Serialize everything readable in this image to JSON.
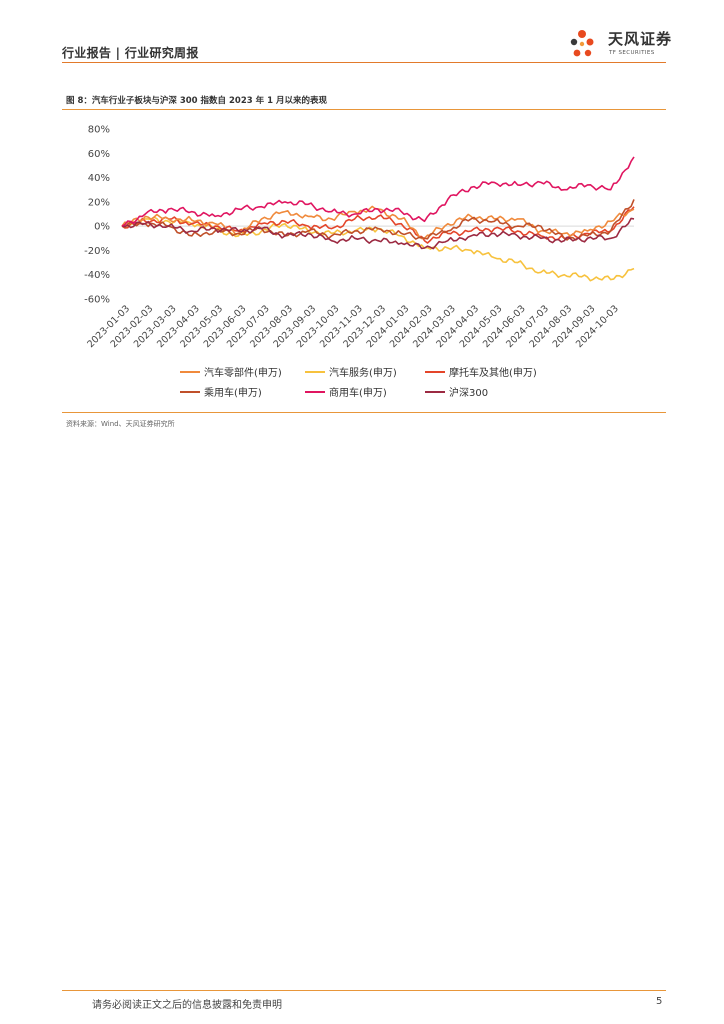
{
  "header": {
    "title": "行业报告 | 行业研究周报",
    "logo_text": "天风证券",
    "logo_sub": "TF SECURITIES"
  },
  "figure": {
    "title": "图 8：汽车行业子板块与沪深 300 指数自 2023 年 1 月以来的表现",
    "source": "资料来源：Wind、天风证券研究所"
  },
  "footer": {
    "disclaimer": "请务必阅读正文之后的信息披露和免责申明",
    "page_number": "5"
  },
  "colors": {
    "accent": "#e8963a",
    "parts": "#f08a3c",
    "service": "#f7c23e",
    "moto": "#e4452a",
    "passenger": "#c0502a",
    "commercial": "#e01560",
    "hs300": "#9c2a42"
  },
  "chart_data": {
    "type": "line",
    "x": [
      "2023-01-03",
      "2023-02-03",
      "2023-03-03",
      "2023-04-03",
      "2023-05-03",
      "2023-06-03",
      "2023-07-03",
      "2023-08-03",
      "2023-09-03",
      "2023-10-03",
      "2023-11-03",
      "2023-12-03",
      "2024-01-03",
      "2024-02-03",
      "2024-03-03",
      "2024-04-03",
      "2024-05-03",
      "2024-06-03",
      "2024-07-03",
      "2024-08-03",
      "2024-09-03",
      "2024-10-03",
      "2024-10-25"
    ],
    "ylim": [
      -60,
      80
    ],
    "yticks": [
      "80%",
      "60%",
      "40%",
      "20%",
      "0%",
      "-20%",
      "-40%",
      "-60%"
    ],
    "ytick_values": [
      80,
      60,
      40,
      20,
      0,
      -20,
      -40,
      -60
    ],
    "series": [
      {
        "name": "汽车零部件(申万)",
        "color_key": "parts",
        "values": [
          0,
          8,
          6,
          5,
          2,
          -6,
          6,
          12,
          8,
          6,
          12,
          14,
          6,
          -10,
          2,
          8,
          6,
          6,
          -4,
          -6,
          -4,
          4,
          14
        ]
      },
      {
        "name": "汽车服务(申万)",
        "color_key": "service",
        "values": [
          0,
          6,
          4,
          2,
          -2,
          -8,
          -4,
          2,
          -4,
          -6,
          -4,
          -2,
          -8,
          -18,
          -18,
          -20,
          -26,
          -30,
          -38,
          -40,
          -42,
          -44,
          -35
        ]
      },
      {
        "name": "摩托车及其他(申万)",
        "color_key": "moto",
        "values": [
          0,
          4,
          6,
          2,
          0,
          -4,
          2,
          4,
          0,
          -2,
          6,
          8,
          2,
          -12,
          -6,
          -4,
          -2,
          -4,
          -8,
          -10,
          -6,
          -4,
          16
        ]
      },
      {
        "name": "乘用车(申万)",
        "color_key": "passenger",
        "values": [
          0,
          2,
          0,
          -8,
          -4,
          -6,
          -2,
          -8,
          -4,
          -8,
          -4,
          -2,
          -6,
          -10,
          -4,
          6,
          4,
          0,
          0,
          -10,
          -8,
          -4,
          22
        ]
      },
      {
        "name": "商用车(申万)",
        "color_key": "commercial",
        "values": [
          0,
          10,
          14,
          12,
          8,
          14,
          16,
          20,
          18,
          12,
          10,
          14,
          12,
          4,
          22,
          32,
          36,
          34,
          36,
          30,
          34,
          30,
          57
        ]
      },
      {
        "name": "沪深300",
        "color_key": "hs300",
        "values": [
          0,
          2,
          0,
          -4,
          -2,
          -4,
          -2,
          -8,
          -6,
          -12,
          -10,
          -12,
          -14,
          -18,
          -12,
          -8,
          -6,
          -8,
          -10,
          -12,
          -10,
          -10,
          6
        ]
      }
    ]
  }
}
